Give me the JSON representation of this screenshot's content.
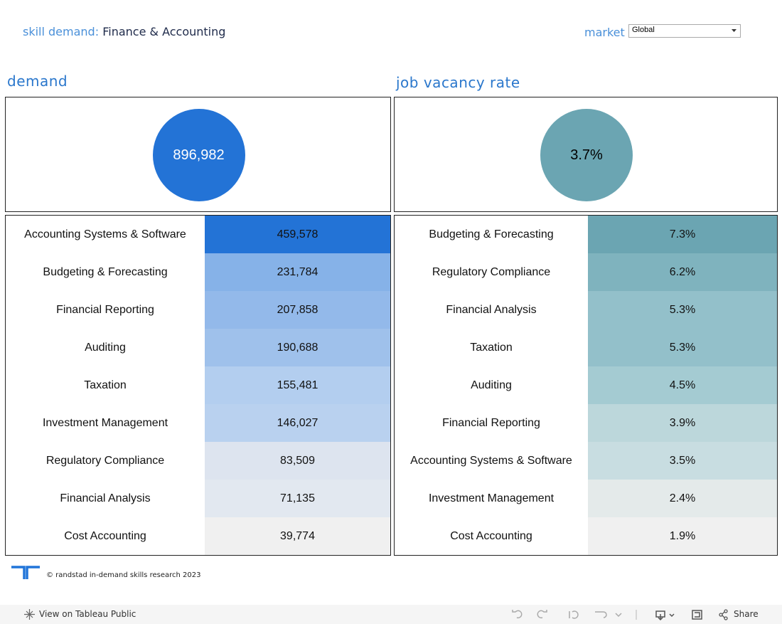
{
  "header": {
    "prefix": "skill demand:",
    "topic": "Finance & Accounting",
    "filter_label": "market",
    "filter_value": "Global"
  },
  "panels": [
    {
      "title": "demand",
      "kpi": "896,982",
      "kpi_color": "#2373d6",
      "kpi_text_color": "#ffffff",
      "rows": [
        {
          "label": "Accounting Systems & Software",
          "value": "459,578",
          "color": "#2373d6"
        },
        {
          "label": "Budgeting & Forecasting",
          "value": "231,784",
          "color": "#86b2e8"
        },
        {
          "label": "Financial Reporting",
          "value": "207,858",
          "color": "#93b9ea"
        },
        {
          "label": "Auditing",
          "value": "190,688",
          "color": "#9fc1eb"
        },
        {
          "label": "Taxation",
          "value": "155,481",
          "color": "#b3ceef"
        },
        {
          "label": "Investment Management",
          "value": "146,027",
          "color": "#b9d1ef"
        },
        {
          "label": "Regulatory Compliance",
          "value": "83,509",
          "color": "#dde4ef"
        },
        {
          "label": "Financial Analysis",
          "value": "71,135",
          "color": "#e2e8f0"
        },
        {
          "label": "Cost Accounting",
          "value": "39,774",
          "color": "#f0f0f0"
        }
      ]
    },
    {
      "title": "job vacancy rate",
      "kpi": "3.7%",
      "kpi_color": "#6ba5b2",
      "kpi_text_color": "#000000",
      "rows": [
        {
          "label": "Budgeting & Forecasting",
          "value": "7.3%",
          "color": "#6ba5b2"
        },
        {
          "label": "Regulatory Compliance",
          "value": "6.2%",
          "color": "#7fb3be"
        },
        {
          "label": "Financial Analysis",
          "value": "5.3%",
          "color": "#93c0ca"
        },
        {
          "label": "Taxation",
          "value": "5.3%",
          "color": "#93c0ca"
        },
        {
          "label": "Auditing",
          "value": "4.5%",
          "color": "#a4cbd2"
        },
        {
          "label": "Financial Reporting",
          "value": "3.9%",
          "color": "#bcd7db"
        },
        {
          "label": "Accounting Systems & Software",
          "value": "3.5%",
          "color": "#c8dde1"
        },
        {
          "label": "Investment Management",
          "value": "2.4%",
          "color": "#e4eaea"
        },
        {
          "label": "Cost Accounting",
          "value": "1.9%",
          "color": "#f0f0f0"
        }
      ]
    }
  ],
  "footer": {
    "credit": "© randstad in-demand skills research 2023",
    "view_link": "View on Tableau Public",
    "share": "Share"
  }
}
